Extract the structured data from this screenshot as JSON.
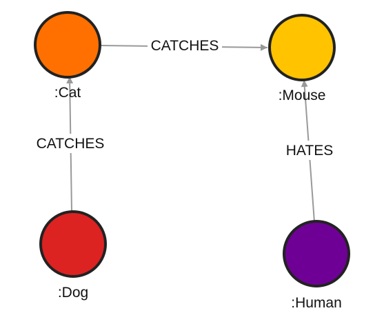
{
  "graph": {
    "nodes": [
      {
        "id": "cat",
        "label": ":Cat",
        "color": "#FF7000"
      },
      {
        "id": "mouse",
        "label": ":Mouse",
        "color": "#FFC300"
      },
      {
        "id": "dog",
        "label": ":Dog",
        "color": "#DD2222"
      },
      {
        "id": "human",
        "label": ":Human",
        "color": "#6F0096"
      }
    ],
    "edges": [
      {
        "from": "cat",
        "to": "mouse",
        "label": "CATCHES"
      },
      {
        "from": "dog",
        "to": "cat",
        "label": "CATCHES"
      },
      {
        "from": "human",
        "to": "mouse",
        "label": "HATES"
      }
    ],
    "edge_color": "#999999",
    "node_stroke": "#222222"
  }
}
